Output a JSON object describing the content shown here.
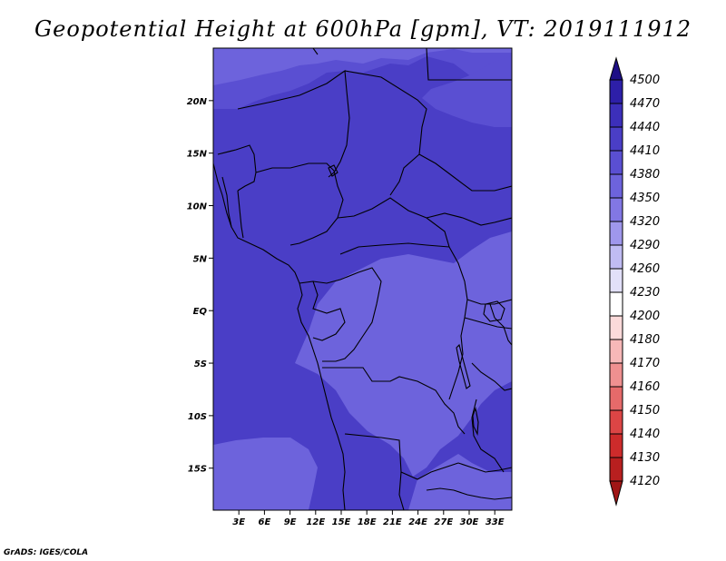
{
  "title": "Geopotential Height at 600hPa [gpm], VT: 2019111912",
  "footer": "GrADS: IGES/COLA",
  "map": {
    "lon_range": [
      0,
      35
    ],
    "lat_range": [
      -19,
      25
    ],
    "lat_ticks": [
      {
        "value": 20,
        "label": "20N"
      },
      {
        "value": 15,
        "label": "15N"
      },
      {
        "value": 10,
        "label": "10N"
      },
      {
        "value": 5,
        "label": "5N"
      },
      {
        "value": 0,
        "label": "EQ"
      },
      {
        "value": -5,
        "label": "5S"
      },
      {
        "value": -10,
        "label": "10S"
      },
      {
        "value": -15,
        "label": "15S"
      }
    ],
    "lon_ticks": [
      {
        "value": 3,
        "label": "3E"
      },
      {
        "value": 6,
        "label": "6E"
      },
      {
        "value": 9,
        "label": "9E"
      },
      {
        "value": 12,
        "label": "12E"
      },
      {
        "value": 15,
        "label": "15E"
      },
      {
        "value": 18,
        "label": "18E"
      },
      {
        "value": 21,
        "label": "21E"
      },
      {
        "value": 24,
        "label": "24E"
      },
      {
        "value": 27,
        "label": "27E"
      },
      {
        "value": 30,
        "label": "30E"
      },
      {
        "value": 33,
        "label": "33E"
      }
    ]
  },
  "colorbar": {
    "levels": [
      "4500",
      "4470",
      "4440",
      "4410",
      "4380",
      "4350",
      "4320",
      "4290",
      "4260",
      "4230",
      "4200",
      "4180",
      "4170",
      "4160",
      "4150",
      "4140",
      "4130",
      "4120"
    ],
    "colors": [
      "#1e0f86",
      "#2d1fa8",
      "#3c2fba",
      "#4a3ec6",
      "#5a4fd2",
      "#6d63dc",
      "#8277e4",
      "#9f97ec",
      "#c0bcf3",
      "#e2e0f9",
      "#ffffff",
      "#fbdada",
      "#f7b8b8",
      "#ef9090",
      "#e66a6a",
      "#dc4545",
      "#cd2b2b",
      "#b81f1f",
      "#a01616"
    ]
  },
  "field_colors": {
    "light": "#6d63dc",
    "medium": "#5a4fd2",
    "dark": "#4a3ec6"
  }
}
